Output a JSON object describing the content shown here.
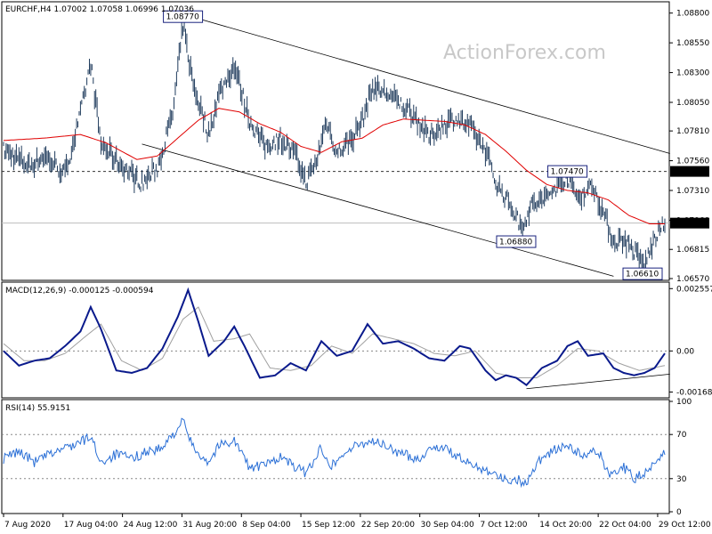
{
  "header": {
    "main": "EURCHF,H4  1.07002 1.07058 1.06996 1.07036",
    "macd": "MACD(12,26,9) -0.000125 -0.000594",
    "rsi": "RSI(14) 55.9151"
  },
  "watermark": "ActionForex.com",
  "colors": {
    "price": "#1f3b5c",
    "ma": "#e00000",
    "macd": "#0a1a8c",
    "signal": "#a0a0a0",
    "rsi": "#2a6fd6",
    "grid_dash": "#888888",
    "channel": "#000000"
  },
  "chart_data": [
    {
      "type": "line",
      "panel": "price",
      "ylim": [
        1.0657,
        1.0885
      ],
      "y_ticks": [
        "1.08800",
        "1.08550",
        "1.08300",
        "1.08050",
        "1.07810",
        "1.07560",
        "1.07310",
        "1.07060",
        "1.06815",
        "1.06570"
      ],
      "y_tick_values": [
        1.088,
        1.0855,
        1.083,
        1.0805,
        1.0781,
        1.0756,
        1.0731,
        1.0706,
        1.06815,
        1.0657
      ],
      "current_price": "1.07036",
      "current_value": 1.07036,
      "level_line": "1.07470",
      "level_value": 1.0747,
      "callouts": [
        {
          "label": "1.08770",
          "value": 1.0877,
          "bar": 35
        },
        {
          "label": "1.06880",
          "value": 1.0688,
          "bar": 100
        },
        {
          "label": "1.07470",
          "value": 1.0747,
          "bar": 110
        },
        {
          "label": "1.06610",
          "value": 1.0661,
          "bar": 125
        }
      ],
      "channel_upper": [
        [
          35,
          1.0879
        ],
        [
          130,
          1.0762
        ]
      ],
      "channel_lower": [
        [
          27,
          1.077
        ],
        [
          119,
          1.0659
        ]
      ],
      "series_keys": [
        {
          "t": 0,
          "v": 1.0765
        },
        {
          "t": 5,
          "v": 1.0752
        },
        {
          "t": 8,
          "v": 1.076
        },
        {
          "t": 12,
          "v": 1.0745
        },
        {
          "t": 15,
          "v": 1.0795
        },
        {
          "t": 17,
          "v": 1.0838
        },
        {
          "t": 19,
          "v": 1.077
        },
        {
          "t": 23,
          "v": 1.0752
        },
        {
          "t": 27,
          "v": 1.0737
        },
        {
          "t": 30,
          "v": 1.075
        },
        {
          "t": 33,
          "v": 1.0795
        },
        {
          "t": 35,
          "v": 1.087
        },
        {
          "t": 37,
          "v": 1.082
        },
        {
          "t": 40,
          "v": 1.0778
        },
        {
          "t": 42,
          "v": 1.0812
        },
        {
          "t": 45,
          "v": 1.0836
        },
        {
          "t": 48,
          "v": 1.079
        },
        {
          "t": 51,
          "v": 1.0768
        },
        {
          "t": 54,
          "v": 1.0775
        },
        {
          "t": 57,
          "v": 1.076
        },
        {
          "t": 59,
          "v": 1.0738
        },
        {
          "t": 61,
          "v": 1.0755
        },
        {
          "t": 63,
          "v": 1.079
        },
        {
          "t": 65,
          "v": 1.0762
        },
        {
          "t": 68,
          "v": 1.0775
        },
        {
          "t": 70,
          "v": 1.079
        },
        {
          "t": 72,
          "v": 1.0818
        },
        {
          "t": 75,
          "v": 1.0812
        },
        {
          "t": 77,
          "v": 1.0805
        },
        {
          "t": 80,
          "v": 1.0795
        },
        {
          "t": 83,
          "v": 1.0775
        },
        {
          "t": 85,
          "v": 1.0784
        },
        {
          "t": 88,
          "v": 1.0792
        },
        {
          "t": 91,
          "v": 1.0784
        },
        {
          "t": 94,
          "v": 1.0765
        },
        {
          "t": 96,
          "v": 1.0738
        },
        {
          "t": 99,
          "v": 1.0718
        },
        {
          "t": 101,
          "v": 1.07
        },
        {
          "t": 103,
          "v": 1.0718
        },
        {
          "t": 106,
          "v": 1.0725
        },
        {
          "t": 108,
          "v": 1.0735
        },
        {
          "t": 110,
          "v": 1.0743
        },
        {
          "t": 112,
          "v": 1.0725
        },
        {
          "t": 115,
          "v": 1.0735
        },
        {
          "t": 117,
          "v": 1.0712
        },
        {
          "t": 119,
          "v": 1.0688
        },
        {
          "t": 121,
          "v": 1.069
        },
        {
          "t": 123,
          "v": 1.068
        },
        {
          "t": 125,
          "v": 1.0668
        },
        {
          "t": 127,
          "v": 1.069
        },
        {
          "t": 129,
          "v": 1.0704
        }
      ],
      "ma_keys": [
        {
          "t": 0,
          "v": 1.0773
        },
        {
          "t": 8,
          "v": 1.0775
        },
        {
          "t": 15,
          "v": 1.0778
        },
        {
          "t": 20,
          "v": 1.0771
        },
        {
          "t": 26,
          "v": 1.0757
        },
        {
          "t": 30,
          "v": 1.076
        },
        {
          "t": 34,
          "v": 1.0775
        },
        {
          "t": 38,
          "v": 1.079
        },
        {
          "t": 42,
          "v": 1.08
        },
        {
          "t": 46,
          "v": 1.0797
        },
        {
          "t": 50,
          "v": 1.0787
        },
        {
          "t": 54,
          "v": 1.078
        },
        {
          "t": 58,
          "v": 1.0768
        },
        {
          "t": 62,
          "v": 1.0763
        },
        {
          "t": 66,
          "v": 1.0772
        },
        {
          "t": 70,
          "v": 1.0775
        },
        {
          "t": 74,
          "v": 1.0786
        },
        {
          "t": 78,
          "v": 1.0791
        },
        {
          "t": 82,
          "v": 1.079
        },
        {
          "t": 86,
          "v": 1.0789
        },
        {
          "t": 90,
          "v": 1.0786
        },
        {
          "t": 94,
          "v": 1.0778
        },
        {
          "t": 98,
          "v": 1.0764
        },
        {
          "t": 102,
          "v": 1.0748
        },
        {
          "t": 106,
          "v": 1.0736
        },
        {
          "t": 110,
          "v": 1.0731
        },
        {
          "t": 114,
          "v": 1.0729
        },
        {
          "t": 118,
          "v": 1.0723
        },
        {
          "t": 122,
          "v": 1.071
        },
        {
          "t": 126,
          "v": 1.0703
        },
        {
          "t": 129,
          "v": 1.0703
        }
      ]
    },
    {
      "type": "line",
      "panel": "macd",
      "ylim": [
        -0.00185,
        0.00275
      ],
      "y_ticks": [
        "0.002557",
        "0.00",
        "-0.001685"
      ],
      "y_tick_values": [
        0.002557,
        0.0,
        -0.001685
      ],
      "zero_line": 0.0,
      "trendline": [
        [
          102,
          -0.00155
        ],
        [
          130,
          -0.00095
        ]
      ],
      "macd_keys": [
        {
          "t": 0,
          "v": 0.0
        },
        {
          "t": 3,
          "v": -0.0006
        },
        {
          "t": 6,
          "v": -0.0004
        },
        {
          "t": 9,
          "v": -0.0003
        },
        {
          "t": 12,
          "v": 0.0002
        },
        {
          "t": 15,
          "v": 0.0008
        },
        {
          "t": 17,
          "v": 0.0018
        },
        {
          "t": 19,
          "v": 0.0009
        },
        {
          "t": 22,
          "v": -0.0008
        },
        {
          "t": 25,
          "v": -0.0009
        },
        {
          "t": 28,
          "v": -0.0007
        },
        {
          "t": 31,
          "v": 0.0001
        },
        {
          "t": 34,
          "v": 0.0014
        },
        {
          "t": 36,
          "v": 0.0025
        },
        {
          "t": 38,
          "v": 0.0012
        },
        {
          "t": 40,
          "v": -0.0002
        },
        {
          "t": 43,
          "v": 0.0004
        },
        {
          "t": 45,
          "v": 0.001
        },
        {
          "t": 47,
          "v": 0.0002
        },
        {
          "t": 50,
          "v": -0.0011
        },
        {
          "t": 53,
          "v": -0.001
        },
        {
          "t": 56,
          "v": -0.0005
        },
        {
          "t": 59,
          "v": -0.0008
        },
        {
          "t": 62,
          "v": 0.0004
        },
        {
          "t": 65,
          "v": -0.0002
        },
        {
          "t": 68,
          "v": 0.0
        },
        {
          "t": 71,
          "v": 0.0011
        },
        {
          "t": 74,
          "v": 0.0003
        },
        {
          "t": 77,
          "v": 0.0004
        },
        {
          "t": 80,
          "v": 0.0001
        },
        {
          "t": 83,
          "v": -0.0003
        },
        {
          "t": 86,
          "v": -0.0004
        },
        {
          "t": 89,
          "v": 0.0002
        },
        {
          "t": 91,
          "v": 0.0001
        },
        {
          "t": 94,
          "v": -0.0008
        },
        {
          "t": 96,
          "v": -0.0012
        },
        {
          "t": 98,
          "v": -0.001
        },
        {
          "t": 100,
          "v": -0.0011
        },
        {
          "t": 102,
          "v": -0.0014
        },
        {
          "t": 105,
          "v": -0.0007
        },
        {
          "t": 108,
          "v": -0.0004
        },
        {
          "t": 110,
          "v": 0.0002
        },
        {
          "t": 112,
          "v": 0.0004
        },
        {
          "t": 114,
          "v": -0.0002
        },
        {
          "t": 117,
          "v": -0.0001
        },
        {
          "t": 119,
          "v": -0.0007
        },
        {
          "t": 121,
          "v": -0.0009
        },
        {
          "t": 123,
          "v": -0.001
        },
        {
          "t": 125,
          "v": -0.0009
        },
        {
          "t": 127,
          "v": -0.0007
        },
        {
          "t": 129,
          "v": -0.0001
        }
      ],
      "signal_keys": [
        {
          "t": 0,
          "v": 0.0003
        },
        {
          "t": 4,
          "v": -0.0004
        },
        {
          "t": 8,
          "v": -0.0004
        },
        {
          "t": 12,
          "v": -0.0001
        },
        {
          "t": 16,
          "v": 0.0006
        },
        {
          "t": 19,
          "v": 0.0011
        },
        {
          "t": 23,
          "v": -0.0004
        },
        {
          "t": 27,
          "v": -0.0008
        },
        {
          "t": 31,
          "v": -0.0003
        },
        {
          "t": 35,
          "v": 0.0013
        },
        {
          "t": 38,
          "v": 0.0018
        },
        {
          "t": 41,
          "v": 0.0004
        },
        {
          "t": 45,
          "v": 0.0005
        },
        {
          "t": 48,
          "v": 0.0007
        },
        {
          "t": 52,
          "v": -0.0007
        },
        {
          "t": 56,
          "v": -0.0008
        },
        {
          "t": 60,
          "v": -0.0006
        },
        {
          "t": 64,
          "v": 0.0002
        },
        {
          "t": 68,
          "v": -0.0001
        },
        {
          "t": 72,
          "v": 0.0007
        },
        {
          "t": 76,
          "v": 0.0005
        },
        {
          "t": 80,
          "v": 0.0003
        },
        {
          "t": 84,
          "v": -0.0001
        },
        {
          "t": 88,
          "v": -0.0002
        },
        {
          "t": 92,
          "v": 0.0
        },
        {
          "t": 96,
          "v": -0.0009
        },
        {
          "t": 100,
          "v": -0.0011
        },
        {
          "t": 104,
          "v": -0.0011
        },
        {
          "t": 108,
          "v": -0.0006
        },
        {
          "t": 112,
          "v": 0.0001
        },
        {
          "t": 116,
          "v": 0.0
        },
        {
          "t": 120,
          "v": -0.0005
        },
        {
          "t": 124,
          "v": -0.0008
        },
        {
          "t": 129,
          "v": -0.0006
        }
      ]
    },
    {
      "type": "line",
      "panel": "rsi",
      "ylim": [
        0,
        100
      ],
      "y_ticks": [
        "100",
        "70",
        "30",
        "0"
      ],
      "y_tick_values": [
        100,
        70,
        30,
        0
      ],
      "levels": [
        70,
        30
      ],
      "rsi_keys": [
        {
          "t": 0,
          "v": 48
        },
        {
          "t": 3,
          "v": 55
        },
        {
          "t": 6,
          "v": 45
        },
        {
          "t": 9,
          "v": 52
        },
        {
          "t": 12,
          "v": 58
        },
        {
          "t": 15,
          "v": 63
        },
        {
          "t": 17,
          "v": 68
        },
        {
          "t": 19,
          "v": 45
        },
        {
          "t": 22,
          "v": 52
        },
        {
          "t": 25,
          "v": 48
        },
        {
          "t": 28,
          "v": 55
        },
        {
          "t": 31,
          "v": 57
        },
        {
          "t": 33,
          "v": 70
        },
        {
          "t": 35,
          "v": 82
        },
        {
          "t": 37,
          "v": 58
        },
        {
          "t": 40,
          "v": 45
        },
        {
          "t": 42,
          "v": 60
        },
        {
          "t": 45,
          "v": 65
        },
        {
          "t": 48,
          "v": 40
        },
        {
          "t": 51,
          "v": 42
        },
        {
          "t": 54,
          "v": 50
        },
        {
          "t": 57,
          "v": 40
        },
        {
          "t": 59,
          "v": 35
        },
        {
          "t": 62,
          "v": 58
        },
        {
          "t": 64,
          "v": 42
        },
        {
          "t": 67,
          "v": 55
        },
        {
          "t": 69,
          "v": 60
        },
        {
          "t": 72,
          "v": 65
        },
        {
          "t": 75,
          "v": 58
        },
        {
          "t": 78,
          "v": 52
        },
        {
          "t": 81,
          "v": 48
        },
        {
          "t": 84,
          "v": 60
        },
        {
          "t": 87,
          "v": 55
        },
        {
          "t": 90,
          "v": 45
        },
        {
          "t": 93,
          "v": 40
        },
        {
          "t": 96,
          "v": 35
        },
        {
          "t": 98,
          "v": 28
        },
        {
          "t": 100,
          "v": 30
        },
        {
          "t": 102,
          "v": 25
        },
        {
          "t": 104,
          "v": 45
        },
        {
          "t": 107,
          "v": 55
        },
        {
          "t": 110,
          "v": 60
        },
        {
          "t": 113,
          "v": 50
        },
        {
          "t": 116,
          "v": 55
        },
        {
          "t": 118,
          "v": 35
        },
        {
          "t": 121,
          "v": 40
        },
        {
          "t": 123,
          "v": 30
        },
        {
          "t": 125,
          "v": 35
        },
        {
          "t": 127,
          "v": 45
        },
        {
          "t": 129,
          "v": 56
        }
      ]
    }
  ],
  "x_axis": {
    "labels": [
      "7 Aug 2020",
      "17 Aug 04:00",
      "24 Aug 12:00",
      "31 Aug 20:00",
      "8 Sep 04:00",
      "15 Sep 12:00",
      "22 Sep 20:00",
      "30 Sep 04:00",
      "7 Oct 12:00",
      "14 Oct 20:00",
      "22 Oct 04:00",
      "29 Oct 12:00"
    ],
    "label_bars": [
      0,
      11.6,
      23.2,
      34.8,
      46.4,
      58,
      69.6,
      81.2,
      92.8,
      104.4,
      116,
      127.6
    ],
    "bar_count": 130
  }
}
